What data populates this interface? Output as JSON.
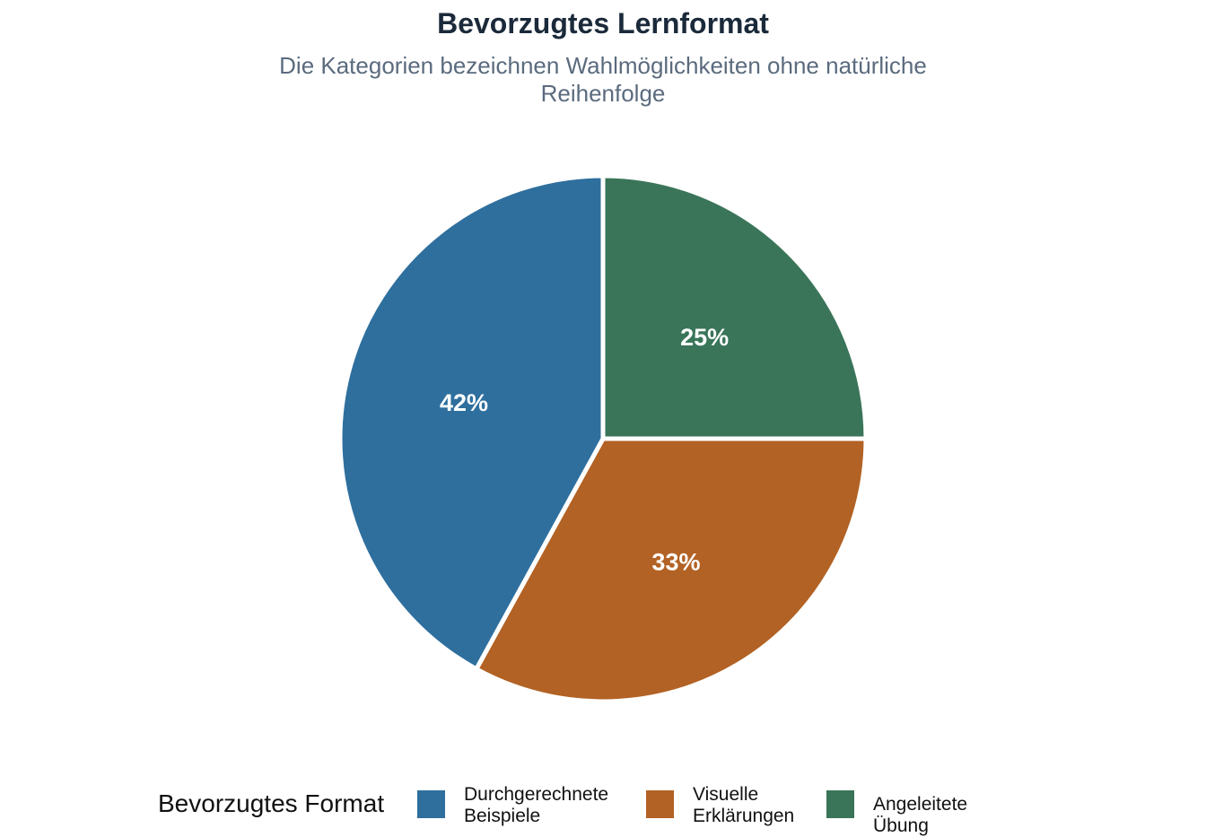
{
  "chart_data": {
    "type": "pie",
    "title": "Bevorzugtes Lernformat",
    "subtitle": "Die Kategorien bezeichnen Wahlmöglichkeiten ohne natürliche Reihenfolge",
    "legend_title": "Bevorzugtes Format",
    "legend_position": "bottom",
    "slices": [
      {
        "label": "Durchgerechnete Beispiele",
        "legend_lines": [
          "Durchgerechnete",
          "Beispiele"
        ],
        "value": 42,
        "value_label": "42%",
        "color": "#2e6f9e"
      },
      {
        "label": "Visuelle Erklärungen",
        "legend_lines": [
          "Visuelle",
          "Erklärungen"
        ],
        "value": 33,
        "value_label": "33%",
        "color": "#b26224"
      },
      {
        "label": "Angeleitete Übung",
        "legend_lines": [
          "Angeleitete Übung"
        ],
        "value": 25,
        "value_label": "25%",
        "color": "#3a7559"
      }
    ],
    "start_angle": "12 o'clock, clockwise; first slice drawn last going clockwise",
    "grid": false
  }
}
